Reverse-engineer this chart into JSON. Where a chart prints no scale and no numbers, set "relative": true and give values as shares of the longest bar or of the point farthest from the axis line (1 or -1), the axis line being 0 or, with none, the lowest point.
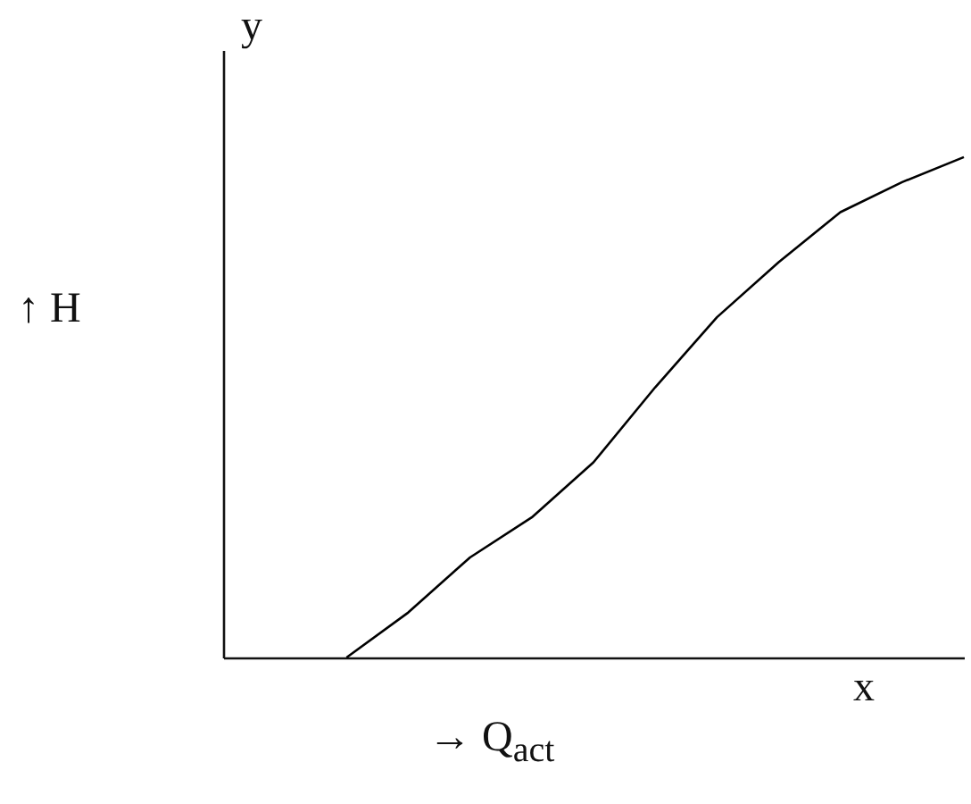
{
  "chart_data": {
    "type": "line",
    "relative": true,
    "xlabel": "→ Q$_{act}$",
    "ylabel": "↑ H",
    "annotations": [
      "y",
      "x"
    ],
    "categories": [
      null,
      null,
      null,
      null,
      null,
      null,
      null,
      null,
      null,
      null,
      null,
      null,
      null
    ],
    "series": [
      {
        "color": "#000000",
        "values": [
          null,
          null,
          0,
          0.09,
          0.2,
          0.28,
          0.39,
          0.54,
          0.68,
          0.79,
          0.89,
          0.95,
          1
        ]
      }
    ],
    "grid": false,
    "legend": false,
    "marker": "none",
    "line_style": "solid"
  }
}
